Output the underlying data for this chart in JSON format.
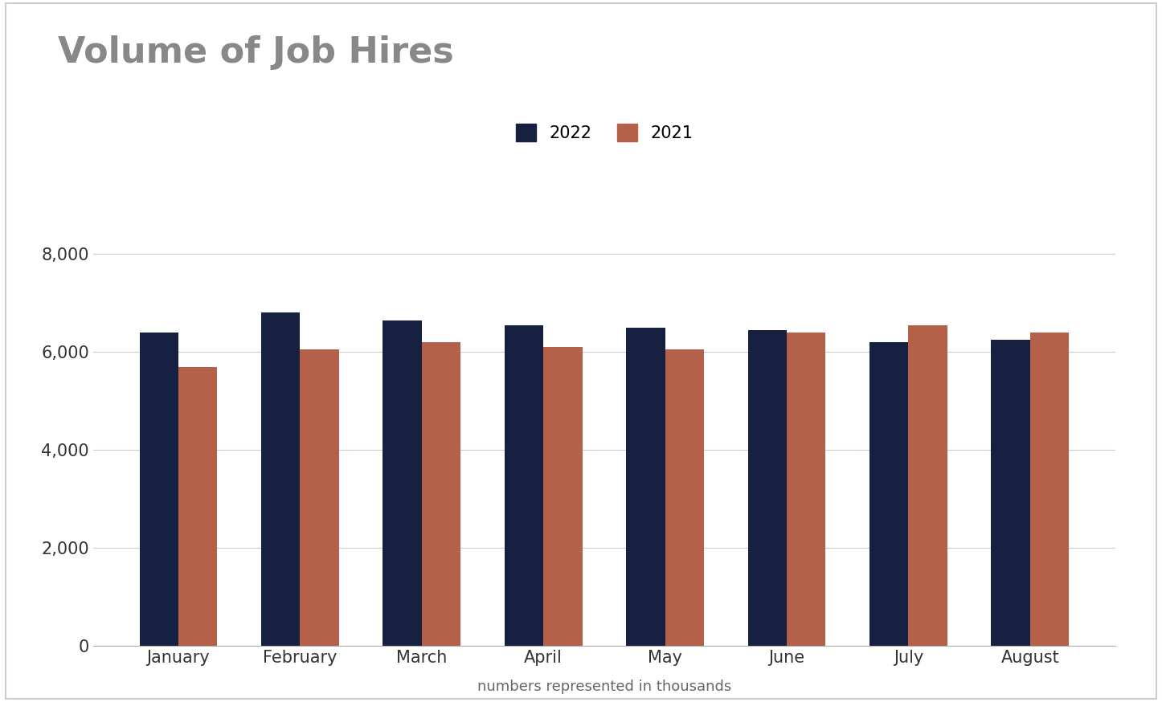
{
  "title": "Volume of Job Hires",
  "xlabel": "numbers represented in thousands",
  "categories": [
    "January",
    "February",
    "March",
    "April",
    "May",
    "June",
    "July",
    "August"
  ],
  "values_2022": [
    6400,
    6800,
    6650,
    6550,
    6500,
    6450,
    6200,
    6250
  ],
  "values_2021": [
    5700,
    6050,
    6200,
    6100,
    6050,
    6400,
    6550,
    6400
  ],
  "color_2022": "#162040",
  "color_2021": "#b5614a",
  "ylim": [
    0,
    8600
  ],
  "yticks": [
    0,
    2000,
    4000,
    6000,
    8000
  ],
  "legend_labels": [
    "2022",
    "2021"
  ],
  "background_color": "#ffffff",
  "title_fontsize": 32,
  "axis_label_fontsize": 13,
  "tick_fontsize": 15,
  "legend_fontsize": 15,
  "bar_width": 0.32,
  "grid_color": "#cccccc",
  "border_color": "#cccccc",
  "title_color": "#888888",
  "tick_label_color": "#333333"
}
